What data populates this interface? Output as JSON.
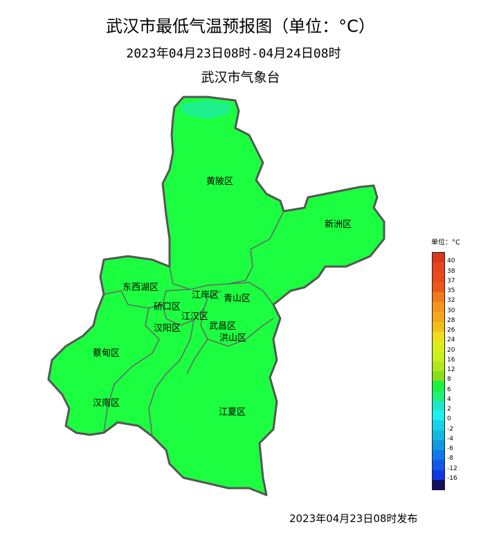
{
  "header": {
    "title": "武汉市最低气温预报图（单位：°C）",
    "period": "2023年04月23日08时-04月24日08时",
    "organization": "武汉市气象台"
  },
  "footer": {
    "issued": "2023年04月23日08时发布"
  },
  "map": {
    "fill_color": "#1cff40",
    "highlight_color": "#1ef08c",
    "border_color": "#555555",
    "districts": [
      "黄陂区",
      "新洲区",
      "东西湖区",
      "江岸区",
      "青山区",
      "硚口区",
      "江汉区",
      "汉阳区",
      "武昌区",
      "洪山区",
      "蔡甸区",
      "汉南区",
      "江夏区"
    ]
  },
  "legend": {
    "title": "单位：°C",
    "labels": [
      "40",
      "38",
      "37",
      "35",
      "32",
      "30",
      "28",
      "26",
      "24",
      "20",
      "16",
      "12",
      "8",
      "6",
      "4",
      "2",
      "0",
      "-2",
      "-4",
      "-6",
      "-8",
      "-12",
      "-16"
    ],
    "colors": [
      "#d8381c",
      "#e8441e",
      "#ea4a1c",
      "#ec581c",
      "#f07a1c",
      "#f5961c",
      "#f5a61c",
      "#f2be1c",
      "#eedd1c",
      "#d8ef1c",
      "#c8f01c",
      "#b0e81c",
      "#88e01c",
      "#1ef040",
      "#1ef078",
      "#1ee8c8",
      "#1ef0f0",
      "#18d0e8",
      "#10b8e0",
      "#1098e0",
      "#1078e8",
      "#1058e8",
      "#1038e0",
      "#101060"
    ]
  }
}
